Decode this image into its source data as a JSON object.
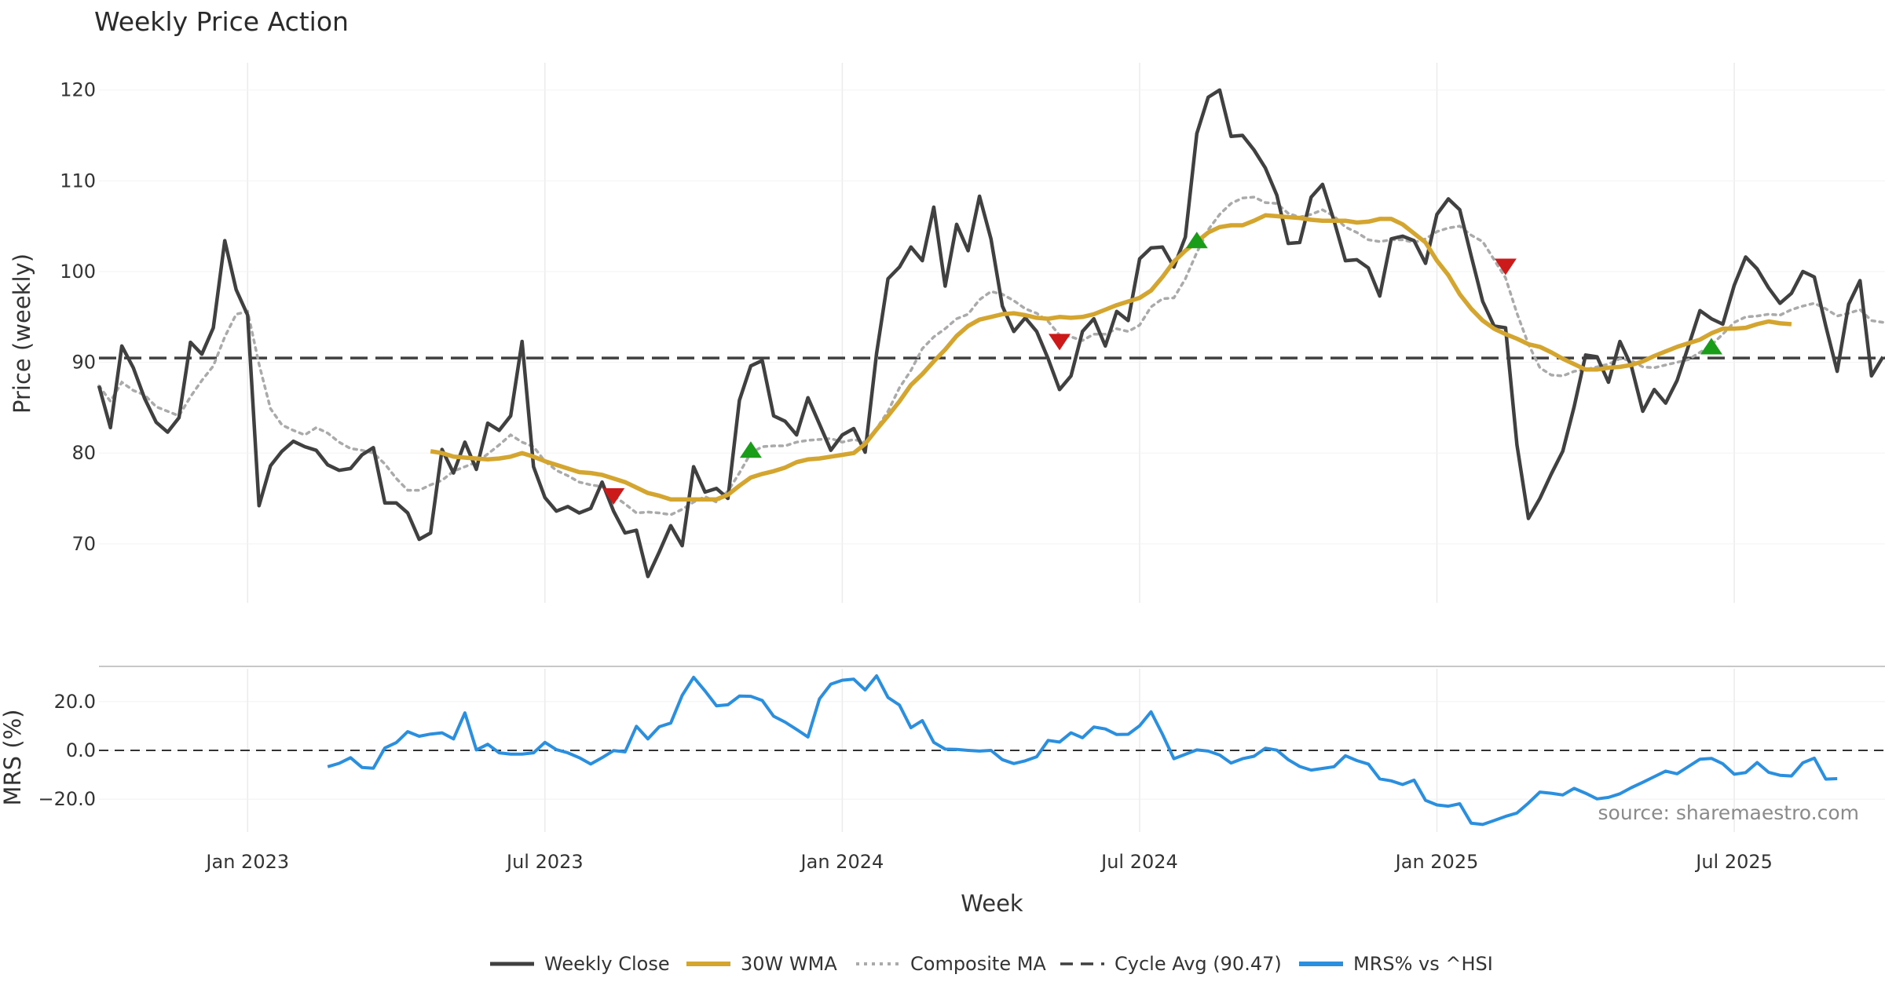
{
  "colors": {
    "close": "#404040",
    "wma": "#d4a52f",
    "composite": "#aaaaaa",
    "cycle": "#404040",
    "mrs": "#2b8fe0",
    "buy": "#1a9e1a",
    "sell": "#cc1a1a",
    "grid": "#ebebeb"
  },
  "chart_data": {
    "type": "line",
    "title": "Weekly Price Action",
    "xlabel": "Week",
    "source": "source: sharemaestro.com",
    "x_ticks": [
      "Jan 2023",
      "Jul 2023",
      "Jan 2024",
      "Jul 2024",
      "Jan 2025",
      "Jul 2025"
    ],
    "x_tick_weeks": [
      13,
      39,
      65,
      91,
      117,
      143
    ],
    "price_panel": {
      "ylabel": "Price (weekly)",
      "ylim": [
        63.5,
        123
      ],
      "y_ticks": [
        70,
        80,
        90,
        100,
        110,
        120
      ],
      "cycle_avg": 90.47
    },
    "mrs_panel": {
      "ylabel": "MRS (%)",
      "ylim": [
        -33.5,
        33.5
      ],
      "y_ticks": [
        20,
        0,
        -20
      ],
      "y_tick_labels": [
        "20.0",
        "0.0",
        "−20.0"
      ]
    },
    "legend": [
      "Weekly Close",
      "30W WMA",
      "Composite MA",
      "Cycle Avg (90.47)",
      "MRS% vs ^HSI"
    ],
    "series": [
      {
        "name": "Weekly Close",
        "start_week": 0,
        "values": [
          87.4,
          82.8,
          91.8,
          89.4,
          86.0,
          83.4,
          82.3,
          83.9,
          92.2,
          90.9,
          93.8,
          103.4,
          98.0,
          95.2,
          74.2,
          78.6,
          80.2,
          81.3,
          80.7,
          80.3,
          78.7,
          78.1,
          78.3,
          79.8,
          80.6,
          74.5,
          74.5,
          73.4,
          70.5,
          71.2,
          80.4,
          77.8,
          81.2,
          78.2,
          83.3,
          82.5,
          84.1,
          92.3,
          78.5,
          75.1,
          73.6,
          74.1,
          73.4,
          73.9,
          76.8,
          73.6,
          71.2,
          71.5,
          66.4,
          69.1,
          72.0,
          69.8,
          78.5,
          75.7,
          76.1,
          75.0,
          85.8,
          89.6,
          90.2,
          84.1,
          83.5,
          82.0,
          86.1,
          83.2,
          80.3,
          82.0,
          82.7,
          80.1,
          91.0,
          99.2,
          100.5,
          102.7,
          101.2,
          107.1,
          98.4,
          105.2,
          102.3,
          108.3,
          103.6,
          96.2,
          93.4,
          94.9,
          93.4,
          90.4,
          87.0,
          88.5,
          93.4,
          94.8,
          91.8,
          95.6,
          94.6,
          101.4,
          102.6,
          102.7,
          100.5,
          103.8,
          115.2,
          119.2,
          120.0,
          114.9,
          115.0,
          113.4,
          111.4,
          108.4,
          103.1,
          103.2,
          108.2,
          109.6,
          105.6,
          101.2,
          101.3,
          100.4,
          97.3,
          103.6,
          103.9,
          103.4,
          100.9,
          106.3,
          108.0,
          106.8,
          101.7,
          96.7,
          94.0,
          93.8,
          80.9,
          72.8,
          75.0,
          77.7,
          80.2,
          85.1,
          90.8,
          90.6,
          87.8,
          92.3,
          89.6,
          84.6,
          87.0,
          85.5,
          88.0,
          91.8,
          95.7,
          94.8,
          94.2,
          98.5,
          101.6,
          100.3,
          98.2,
          96.5,
          97.6,
          100.0,
          99.4,
          94.0,
          89.0,
          96.4,
          99.0,
          88.5,
          90.6
        ]
      },
      {
        "name": "30W WMA",
        "start_week": 29,
        "values": [
          80.2,
          80.0,
          79.6,
          79.5,
          79.4,
          79.3,
          79.4,
          79.6,
          80.0,
          79.6,
          79.1,
          78.7,
          78.3,
          77.9,
          77.8,
          77.6,
          77.2,
          76.8,
          76.2,
          75.6,
          75.3,
          74.9,
          74.9,
          74.9,
          74.9,
          74.9,
          75.4,
          76.4,
          77.3,
          77.7,
          78.0,
          78.4,
          79.0,
          79.3,
          79.4,
          79.6,
          79.8,
          80.0,
          81.0,
          82.6,
          84.1,
          85.7,
          87.5,
          88.7,
          90.1,
          91.4,
          92.9,
          94.0,
          94.7,
          95.0,
          95.3,
          95.4,
          95.2,
          94.9,
          94.8,
          95.0,
          94.9,
          95.0,
          95.3,
          95.8,
          96.3,
          96.7,
          97.1,
          97.9,
          99.4,
          101.1,
          102.3,
          103.3,
          104.3,
          104.9,
          105.1,
          105.1,
          105.6,
          106.2,
          106.1,
          106.0,
          105.9,
          105.7,
          105.6,
          105.6,
          105.6,
          105.4,
          105.5,
          105.8,
          105.8,
          105.2,
          104.2,
          103.2,
          101.2,
          99.6,
          97.5,
          95.9,
          94.6,
          93.7,
          93.1,
          92.6,
          92.0,
          91.7,
          91.1,
          90.4,
          89.8,
          89.2,
          89.2,
          89.4,
          89.5,
          89.7,
          90.1,
          90.7,
          91.2,
          91.7,
          92.1,
          92.5,
          93.2,
          93.7,
          93.7,
          93.8,
          94.2,
          94.5,
          94.3,
          94.2
        ]
      },
      {
        "name": "Composite MA",
        "start_week": 0,
        "values": [
          87.4,
          85.7,
          87.8,
          86.9,
          86.4,
          85.1,
          84.6,
          84.1,
          86.2,
          88.0,
          89.6,
          92.8,
          95.3,
          95.6,
          89.8,
          84.9,
          83.1,
          82.5,
          82.0,
          82.8,
          82.2,
          81.2,
          80.5,
          80.3,
          80.0,
          78.8,
          77.2,
          75.9,
          75.9,
          76.5,
          77.0,
          78.0,
          78.5,
          79.0,
          79.9,
          80.9,
          82.0,
          81.2,
          80.7,
          79.1,
          78.1,
          77.5,
          76.8,
          76.5,
          76.3,
          75.3,
          74.4,
          73.4,
          73.5,
          73.4,
          73.2,
          73.8,
          74.6,
          75.2,
          74.6,
          75.8,
          77.8,
          80.0,
          80.7,
          80.8,
          80.8,
          81.2,
          81.4,
          81.5,
          81.6,
          81.2,
          81.5,
          81.2,
          82.7,
          84.6,
          87.2,
          89.1,
          91.5,
          92.8,
          93.7,
          94.8,
          95.3,
          96.9,
          97.8,
          97.5,
          96.8,
          95.9,
          95.4,
          94.5,
          93.0,
          92.8,
          92.4,
          93.1,
          93.1,
          93.7,
          93.4,
          94.1,
          96.1,
          97.0,
          97.1,
          99.2,
          102.1,
          104.6,
          106.3,
          107.5,
          108.1,
          108.2,
          107.6,
          107.5,
          106.4,
          106.0,
          106.3,
          106.8,
          106.1,
          104.9,
          104.3,
          103.5,
          103.3,
          103.5,
          103.5,
          103.2,
          103.6,
          104.4,
          104.8,
          105.0,
          104.0,
          103.3,
          101.3,
          99.3,
          95.4,
          92.0,
          89.4,
          88.6,
          88.5,
          89.0,
          89.2,
          89.5,
          89.8,
          90.4,
          90.2,
          89.5,
          89.4,
          89.7,
          90.0,
          90.3,
          91.1,
          91.9,
          93.1,
          94.4,
          95.0,
          95.1,
          95.3,
          95.2,
          95.8,
          96.2,
          96.5,
          95.9,
          95.1,
          95.4,
          95.8,
          94.6,
          94.4
        ]
      },
      {
        "name": "MRS% vs ^HSI",
        "start_week": 20,
        "values": [
          -6.7,
          -5.3,
          -3.0,
          -7.0,
          -7.3,
          1.0,
          3.2,
          7.7,
          5.8,
          6.7,
          7.2,
          4.7,
          15.4,
          0.2,
          2.5,
          -1.0,
          -1.5,
          -1.5,
          -1.0,
          3.3,
          0.3,
          -1.0,
          -3.0,
          -5.6,
          -3.0,
          -0.1,
          -0.6,
          9.9,
          4.7,
          9.7,
          11.2,
          22.6,
          30.0,
          24.4,
          18.3,
          18.7,
          22.3,
          22.2,
          20.5,
          14.0,
          11.6,
          8.6,
          5.5,
          21.1,
          27.2,
          28.8,
          29.2,
          24.8,
          30.6,
          21.7,
          18.6,
          9.3,
          12.2,
          3.3,
          0.5,
          0.4,
          0.0,
          -0.3,
          0.0,
          -3.8,
          -5.4,
          -4.3,
          -2.6,
          4.1,
          3.4,
          7.2,
          5.2,
          9.6,
          8.8,
          6.5,
          6.6,
          10.1,
          15.8,
          6.6,
          -3.4,
          -1.6,
          0.2,
          -0.3,
          -1.9,
          -5.2,
          -3.4,
          -2.4,
          0.9,
          0.1,
          -3.8,
          -6.6,
          -8.1,
          -7.4,
          -6.7,
          -2.2,
          -4.2,
          -5.6,
          -11.7,
          -12.5,
          -14.0,
          -12.2,
          -20.5,
          -22.4,
          -22.9,
          -21.9,
          -29.9,
          -30.4,
          -28.8,
          -27.1,
          -25.7,
          -21.6,
          -17.1,
          -17.6,
          -18.3,
          -15.6,
          -17.6,
          -19.9,
          -19.3,
          -17.8,
          -15.3,
          -13.1,
          -10.8,
          -8.5,
          -9.6,
          -6.6,
          -3.6,
          -3.3,
          -5.5,
          -9.8,
          -9.1,
          -5.0,
          -9.0,
          -10.2,
          -10.5,
          -5.1,
          -3.2,
          -11.8,
          -11.6
        ]
      }
    ],
    "signals": [
      {
        "type": "sell",
        "week": 45,
        "value": 75.4
      },
      {
        "type": "buy",
        "week": 57,
        "value": 80.2
      },
      {
        "type": "sell",
        "week": 84,
        "value": 92.4
      },
      {
        "type": "buy",
        "week": 96,
        "value": 103.3
      },
      {
        "type": "sell",
        "week": 123,
        "value": 100.7
      },
      {
        "type": "buy",
        "week": 141,
        "value": 91.6
      }
    ]
  }
}
